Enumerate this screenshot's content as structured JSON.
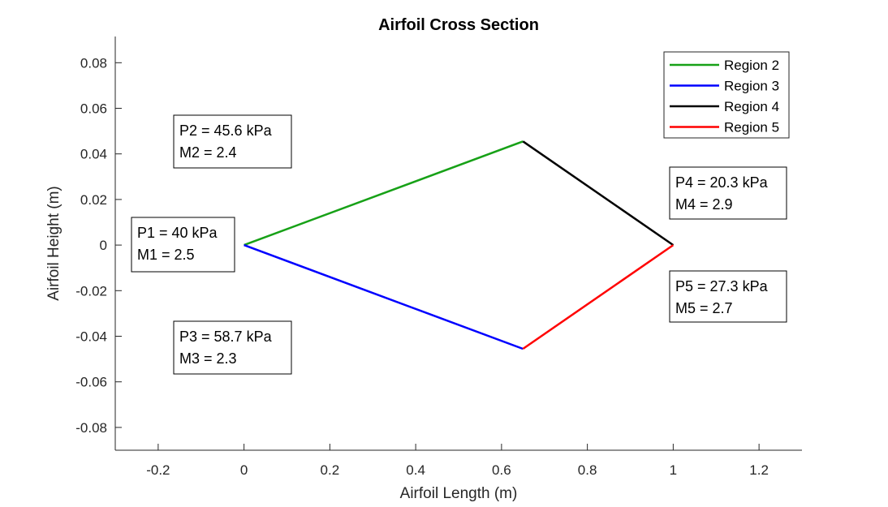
{
  "chart_data": {
    "type": "line",
    "title": "Airfoil Cross Section",
    "xlabel": "Airfoil Length (m)",
    "ylabel": "Airfoil Height (m)",
    "xlim": [
      -0.3,
      1.3
    ],
    "ylim": [
      -0.09,
      0.0915
    ],
    "xticks": [
      -0.2,
      0,
      0.2,
      0.4,
      0.6,
      0.8,
      1,
      1.2
    ],
    "xtick_labels": [
      "-0.2",
      "0",
      "0.2",
      "0.4",
      "0.6",
      "0.8",
      "1",
      "1.2"
    ],
    "yticks": [
      0.08,
      0.06,
      0.04,
      0.02,
      0,
      -0.02,
      -0.04,
      -0.06,
      -0.08
    ],
    "ytick_labels": [
      "0.08",
      "0.06",
      "0.04",
      "0.02",
      "0",
      "-0.02",
      "-0.04",
      "-0.06",
      "-0.08"
    ],
    "grid": false,
    "legend_position": "top-right",
    "series": [
      {
        "name": "Region 2",
        "color": "#17a117",
        "x": [
          0,
          0.65
        ],
        "y": [
          0,
          0.0455
        ]
      },
      {
        "name": "Region 3",
        "color": "#0000ff",
        "x": [
          0,
          0.65
        ],
        "y": [
          0,
          -0.0455
        ]
      },
      {
        "name": "Region 4",
        "color": "#000000",
        "x": [
          0.65,
          1
        ],
        "y": [
          0.0455,
          0
        ]
      },
      {
        "name": "Region 5",
        "color": "#ff0000",
        "x": [
          0.65,
          1
        ],
        "y": [
          -0.0455,
          0
        ]
      }
    ],
    "annotations": [
      {
        "lines": [
          "P2 = 45.6 kPa",
          "M2 = 2.4"
        ]
      },
      {
        "lines": [
          "P1 = 40 kPa",
          "M1 = 2.5"
        ]
      },
      {
        "lines": [
          "P3 = 58.7 kPa",
          "M3 = 2.3"
        ]
      },
      {
        "lines": [
          "P4 = 20.3 kPa",
          "M4 = 2.9"
        ]
      },
      {
        "lines": [
          "P5 = 27.3 kPa",
          "M5 = 2.7"
        ]
      }
    ]
  }
}
